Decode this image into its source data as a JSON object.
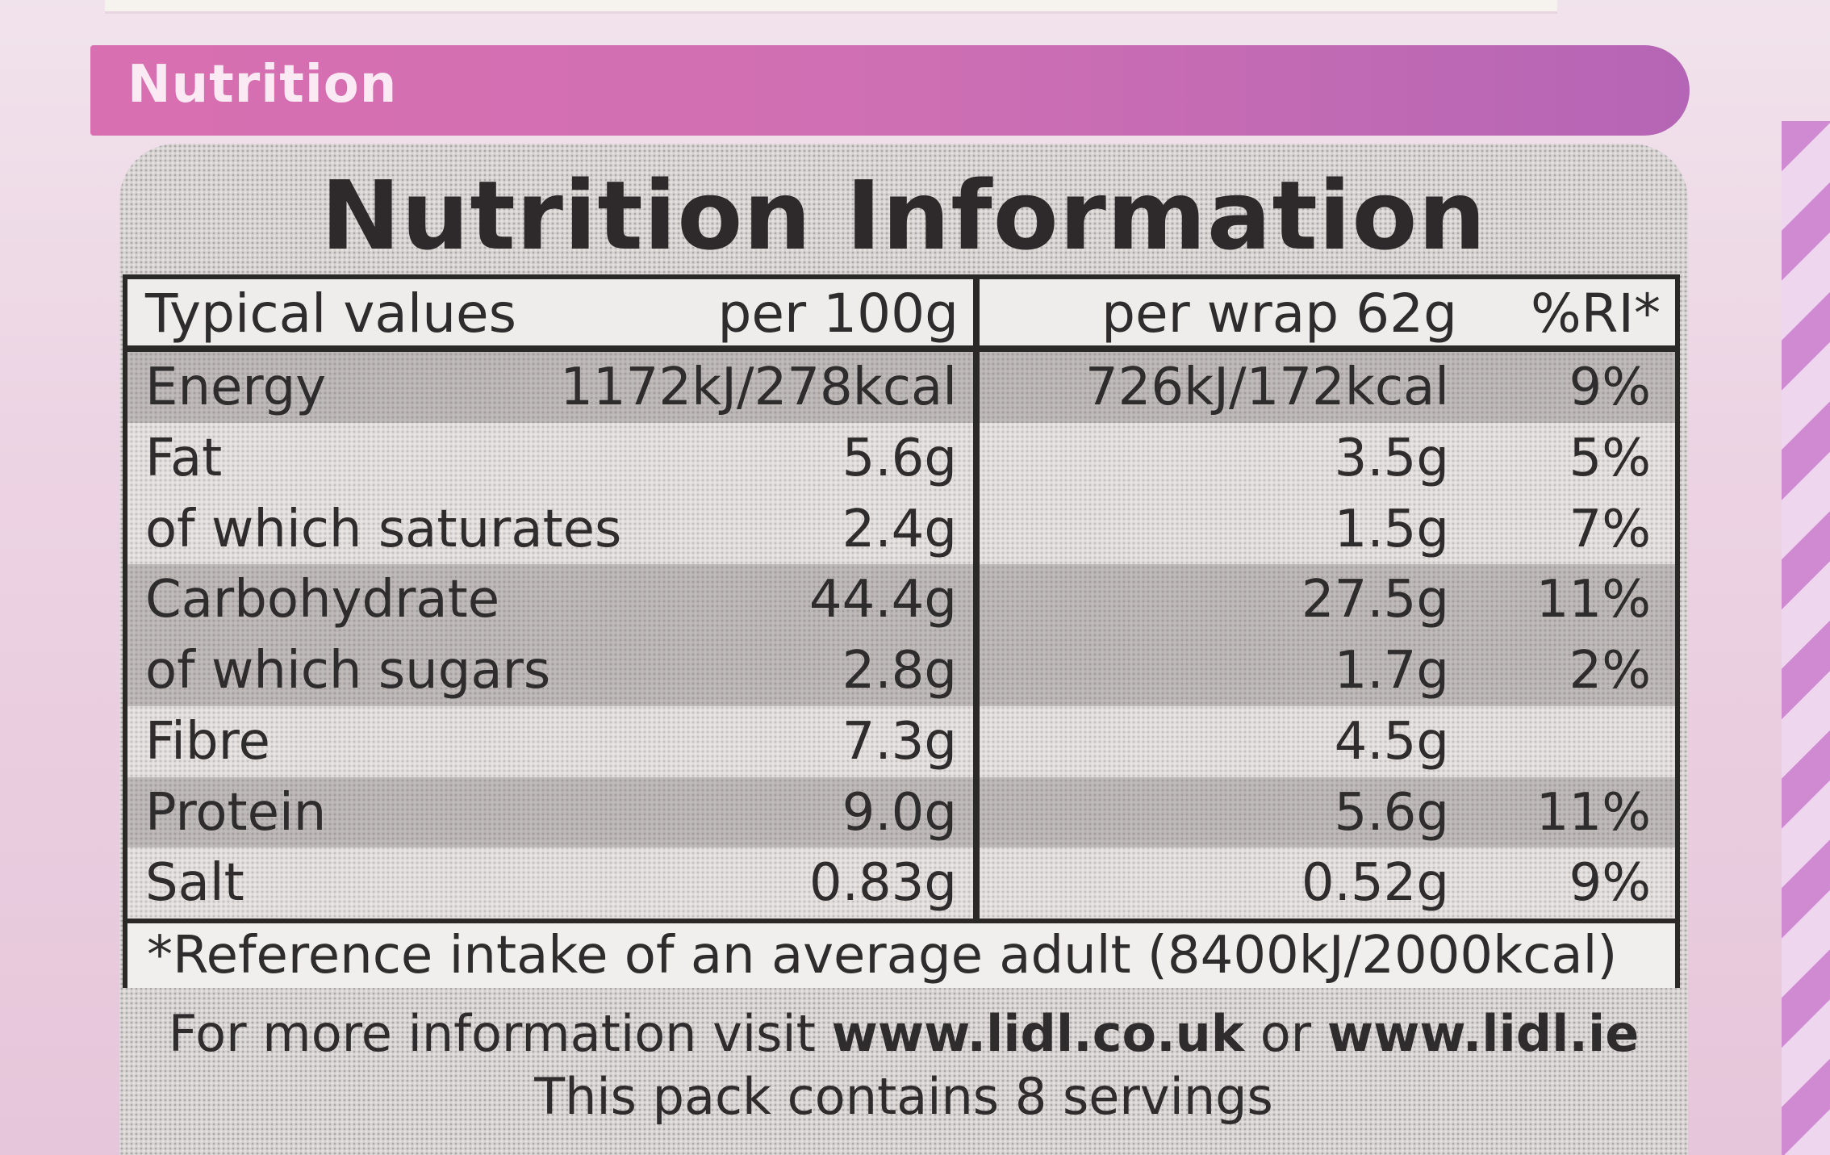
{
  "banner": {
    "label": "Nutrition"
  },
  "panel": {
    "title": "Nutrition Information"
  },
  "table": {
    "headers": {
      "typical": "Typical values",
      "per100": "per 100g",
      "perServing": "per wrap 62g",
      "ri": "%RI*"
    },
    "rows": [
      {
        "name": "Energy",
        "per100": "1172kJ/278kcal",
        "perServing": "726kJ/172kcal",
        "ri": "9%"
      },
      {
        "name": "Fat",
        "per100": "5.6g",
        "perServing": "3.5g",
        "ri": "5%"
      },
      {
        "name": "of which saturates",
        "per100": "2.4g",
        "perServing": "1.5g",
        "ri": "7%"
      },
      {
        "name": "Carbohydrate",
        "per100": "44.4g",
        "perServing": "27.5g",
        "ri": "11%"
      },
      {
        "name": "of which sugars",
        "per100": "2.8g",
        "perServing": "1.7g",
        "ri": "2%"
      },
      {
        "name": "Fibre",
        "per100": "7.3g",
        "perServing": "4.5g",
        "ri": ""
      },
      {
        "name": "Protein",
        "per100": "9.0g",
        "perServing": "5.6g",
        "ri": "11%"
      },
      {
        "name": "Salt",
        "per100": "0.83g",
        "perServing": "0.52g",
        "ri": "9%"
      }
    ],
    "footnote": "*Reference intake of an average adult (8400kJ/2000kcal)"
  },
  "info": {
    "prefix": "For more information visit ",
    "site1": "www.lidl.co.uk",
    "or": " or ",
    "site2": "www.lidl.ie",
    "servings": "This pack contains 8 servings"
  },
  "colors": {
    "banner": "#d86fb0",
    "text": "#2f2c2d",
    "rule": "#2b2828",
    "background": "#ecd3e3"
  }
}
